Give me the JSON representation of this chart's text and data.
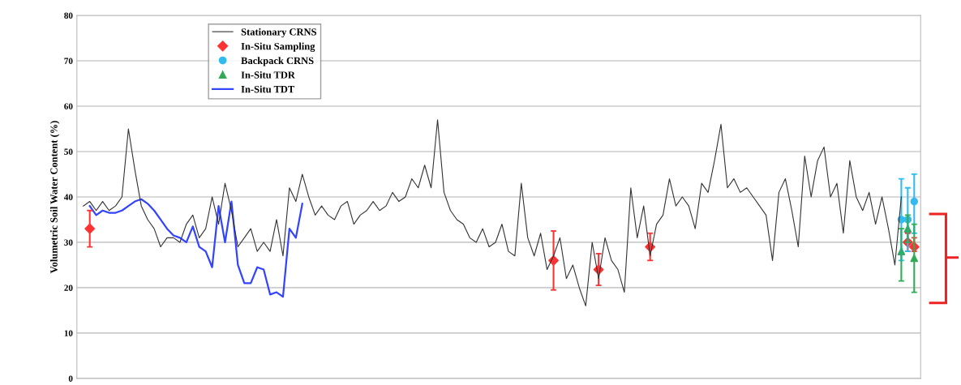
{
  "chart_data": {
    "type": "line",
    "ylabel": "Volumetric Soil Water Content (%)",
    "categories": [
      null,
      null,
      null,
      null,
      null,
      null,
      null,
      null,
      null,
      null,
      null,
      null,
      null,
      null,
      null,
      null,
      null,
      null,
      null,
      null,
      null,
      null,
      null,
      null,
      null,
      null,
      null,
      null,
      null,
      null,
      null,
      null,
      null,
      null,
      null,
      null,
      null,
      null,
      null,
      null,
      null,
      null,
      null,
      null,
      null,
      null,
      null,
      null,
      null,
      null,
      null,
      null,
      null,
      null,
      null,
      null,
      null,
      null,
      null,
      null,
      null,
      null,
      null,
      null,
      null,
      null,
      null,
      null,
      null,
      null,
      null,
      null,
      null,
      null,
      null,
      null,
      null,
      null,
      null,
      null,
      null,
      null,
      null,
      null,
      null,
      null,
      null,
      null,
      null,
      null,
      null,
      null,
      null,
      null,
      null,
      null,
      null,
      null,
      null,
      null,
      null,
      null,
      null,
      null,
      null,
      null,
      null,
      null,
      null,
      null,
      null,
      null,
      null,
      null,
      null,
      null,
      null,
      null,
      null,
      null,
      null,
      null,
      null,
      null,
      null,
      null,
      null,
      null,
      null,
      null
    ],
    "ylim": [
      0,
      80
    ],
    "yticks": [
      0,
      10,
      20,
      30,
      40,
      50,
      60,
      70,
      80
    ],
    "grid": "y",
    "legend": "top left",
    "series": [
      {
        "name": "Stationary CRNS",
        "color": "#333333",
        "marker": "none",
        "values": [
          38,
          39,
          37,
          39,
          37,
          38,
          40,
          55,
          46,
          38,
          35,
          33,
          29,
          31,
          31,
          30,
          34,
          36,
          31,
          33,
          40,
          34,
          43,
          37,
          29,
          31,
          33,
          28,
          30,
          28,
          35,
          27,
          42,
          39,
          45,
          40,
          36,
          38,
          36,
          35,
          38,
          39,
          34,
          36,
          37,
          39,
          37,
          38,
          41,
          39,
          40,
          44,
          42,
          47,
          42,
          57,
          41,
          37,
          35,
          34,
          31,
          30,
          33,
          29,
          30,
          34,
          28,
          27,
          43,
          31,
          27,
          32,
          24,
          27,
          31,
          22,
          25,
          20,
          16,
          30,
          22,
          31,
          26,
          24,
          19,
          42,
          31,
          38,
          27,
          34,
          36,
          44,
          38,
          40,
          38,
          33,
          43,
          41,
          48,
          56,
          42,
          44,
          41,
          42,
          40,
          38,
          36,
          26,
          41,
          44,
          37,
          29,
          49,
          40,
          48,
          51,
          40,
          43,
          32,
          48,
          40,
          37,
          41,
          34,
          40,
          33,
          25,
          40,
          null,
          null
        ]
      },
      {
        "name": "In-Situ Sampling",
        "type": "scatter",
        "color": "#ff3333",
        "marker": "diamond",
        "values": [
          null,
          33,
          null,
          null,
          null,
          null,
          null,
          null,
          null,
          null,
          null,
          null,
          null,
          null,
          null,
          null,
          null,
          null,
          null,
          null,
          null,
          null,
          null,
          null,
          null,
          null,
          null,
          null,
          null,
          null,
          null,
          null,
          null,
          null,
          null,
          null,
          null,
          null,
          null,
          null,
          null,
          null,
          null,
          null,
          null,
          null,
          null,
          null,
          null,
          null,
          null,
          null,
          null,
          null,
          null,
          null,
          null,
          null,
          null,
          null,
          null,
          null,
          null,
          null,
          null,
          null,
          null,
          null,
          null,
          null,
          null,
          null,
          null,
          26,
          null,
          null,
          null,
          null,
          null,
          null,
          24,
          null,
          null,
          null,
          null,
          null,
          null,
          null,
          29,
          null,
          null,
          null,
          null,
          null,
          null,
          null,
          null,
          null,
          null,
          null,
          null,
          null,
          null,
          null,
          null,
          null,
          null,
          null,
          null,
          null,
          null,
          null,
          null,
          null,
          null,
          null,
          null,
          null,
          null,
          null,
          null,
          null,
          null,
          null,
          null,
          null,
          null,
          null,
          30,
          29
        ],
        "errors": [
          null,
          [
            29,
            37
          ],
          null,
          null,
          null,
          null,
          null,
          null,
          null,
          null,
          null,
          null,
          null,
          null,
          null,
          null,
          null,
          null,
          null,
          null,
          null,
          null,
          null,
          null,
          null,
          null,
          null,
          null,
          null,
          null,
          null,
          null,
          null,
          null,
          null,
          null,
          null,
          null,
          null,
          null,
          null,
          null,
          null,
          null,
          null,
          null,
          null,
          null,
          null,
          null,
          null,
          null,
          null,
          null,
          null,
          null,
          null,
          null,
          null,
          null,
          null,
          null,
          null,
          null,
          null,
          null,
          null,
          null,
          null,
          null,
          null,
          null,
          null,
          [
            19.5,
            32.5
          ],
          null,
          null,
          null,
          null,
          null,
          null,
          [
            20.5,
            27.5
          ],
          null,
          null,
          null,
          null,
          null,
          null,
          null,
          [
            26,
            32
          ],
          null,
          null,
          null,
          null,
          null,
          null,
          null,
          null,
          null,
          null,
          null,
          null,
          null,
          null,
          null,
          null,
          null,
          null,
          null,
          null,
          null,
          null,
          null,
          null,
          null,
          null,
          null,
          null,
          null,
          null,
          null,
          null,
          null,
          null,
          null,
          null,
          null,
          null,
          null,
          [
            28,
            32
          ],
          [
            28,
            31
          ]
        ]
      },
      {
        "name": "Backpack CRNS",
        "type": "scatter",
        "color": "#33bbee",
        "marker": "circle",
        "values": [
          null,
          null,
          null,
          null,
          null,
          null,
          null,
          null,
          null,
          null,
          null,
          null,
          null,
          null,
          null,
          null,
          null,
          null,
          null,
          null,
          null,
          null,
          null,
          null,
          null,
          null,
          null,
          null,
          null,
          null,
          null,
          null,
          null,
          null,
          null,
          null,
          null,
          null,
          null,
          null,
          null,
          null,
          null,
          null,
          null,
          null,
          null,
          null,
          null,
          null,
          null,
          null,
          null,
          null,
          null,
          null,
          null,
          null,
          null,
          null,
          null,
          null,
          null,
          null,
          null,
          null,
          null,
          null,
          null,
          null,
          null,
          null,
          null,
          null,
          null,
          null,
          null,
          null,
          null,
          null,
          null,
          null,
          null,
          null,
          null,
          null,
          null,
          null,
          null,
          null,
          null,
          null,
          null,
          null,
          null,
          null,
          null,
          null,
          null,
          null,
          null,
          null,
          null,
          null,
          null,
          null,
          null,
          null,
          null,
          null,
          null,
          null,
          null,
          null,
          null,
          null,
          null,
          null,
          null,
          null,
          null,
          null,
          null,
          null,
          null,
          null,
          null,
          35,
          35,
          39
        ],
        "errors": [
          null,
          null,
          null,
          null,
          null,
          null,
          null,
          null,
          null,
          null,
          null,
          null,
          null,
          null,
          null,
          null,
          null,
          null,
          null,
          null,
          null,
          null,
          null,
          null,
          null,
          null,
          null,
          null,
          null,
          null,
          null,
          null,
          null,
          null,
          null,
          null,
          null,
          null,
          null,
          null,
          null,
          null,
          null,
          null,
          null,
          null,
          null,
          null,
          null,
          null,
          null,
          null,
          null,
          null,
          null,
          null,
          null,
          null,
          null,
          null,
          null,
          null,
          null,
          null,
          null,
          null,
          null,
          null,
          null,
          null,
          null,
          null,
          null,
          null,
          null,
          null,
          null,
          null,
          null,
          null,
          null,
          null,
          null,
          null,
          null,
          null,
          null,
          null,
          null,
          null,
          null,
          null,
          null,
          null,
          null,
          null,
          null,
          null,
          null,
          null,
          null,
          null,
          null,
          null,
          null,
          null,
          null,
          null,
          null,
          null,
          null,
          null,
          null,
          null,
          null,
          null,
          null,
          null,
          null,
          null,
          null,
          null,
          null,
          null,
          null,
          null,
          null,
          [
            26,
            44
          ],
          [
            28,
            42
          ],
          [
            32,
            45
          ]
        ]
      },
      {
        "name": "In-Situ TDR",
        "type": "scatter",
        "color": "#33aa55",
        "marker": "triangle",
        "values": [
          null,
          null,
          null,
          null,
          null,
          null,
          null,
          null,
          null,
          null,
          null,
          null,
          null,
          null,
          null,
          null,
          null,
          null,
          null,
          null,
          null,
          null,
          null,
          null,
          null,
          null,
          null,
          null,
          null,
          null,
          null,
          null,
          null,
          null,
          null,
          null,
          null,
          null,
          null,
          null,
          null,
          null,
          null,
          null,
          null,
          null,
          null,
          null,
          null,
          null,
          null,
          null,
          null,
          null,
          null,
          null,
          null,
          null,
          null,
          null,
          null,
          null,
          null,
          null,
          null,
          null,
          null,
          null,
          null,
          null,
          null,
          null,
          null,
          null,
          null,
          null,
          null,
          null,
          null,
          null,
          null,
          null,
          null,
          null,
          null,
          null,
          null,
          null,
          null,
          null,
          null,
          null,
          null,
          null,
          null,
          null,
          null,
          null,
          null,
          null,
          null,
          null,
          null,
          null,
          null,
          null,
          null,
          null,
          null,
          null,
          null,
          null,
          null,
          null,
          null,
          null,
          null,
          null,
          null,
          null,
          null,
          null,
          null,
          null,
          null,
          null,
          null,
          28,
          33,
          26.5
        ],
        "errors": [
          null,
          null,
          null,
          null,
          null,
          null,
          null,
          null,
          null,
          null,
          null,
          null,
          null,
          null,
          null,
          null,
          null,
          null,
          null,
          null,
          null,
          null,
          null,
          null,
          null,
          null,
          null,
          null,
          null,
          null,
          null,
          null,
          null,
          null,
          null,
          null,
          null,
          null,
          null,
          null,
          null,
          null,
          null,
          null,
          null,
          null,
          null,
          null,
          null,
          null,
          null,
          null,
          null,
          null,
          null,
          null,
          null,
          null,
          null,
          null,
          null,
          null,
          null,
          null,
          null,
          null,
          null,
          null,
          null,
          null,
          null,
          null,
          null,
          null,
          null,
          null,
          null,
          null,
          null,
          null,
          null,
          null,
          null,
          null,
          null,
          null,
          null,
          null,
          null,
          null,
          null,
          null,
          null,
          null,
          null,
          null,
          null,
          null,
          null,
          null,
          null,
          null,
          null,
          null,
          null,
          null,
          null,
          null,
          null,
          null,
          null,
          null,
          null,
          null,
          null,
          null,
          null,
          null,
          null,
          null,
          null,
          null,
          null,
          null,
          null,
          null,
          null,
          [
            21.5,
            33
          ],
          [
            30,
            36
          ],
          [
            19,
            34
          ]
        ]
      },
      {
        "name": "In-Situ TDT",
        "color": "#3344ff",
        "marker": "none",
        "values": [
          null,
          38,
          36,
          37,
          36.5,
          36.5,
          37,
          38,
          39,
          39.5,
          38.5,
          37,
          35,
          33,
          31.5,
          31,
          30,
          33.5,
          29,
          28,
          24.5,
          38,
          30,
          39,
          25,
          21,
          21,
          24.5,
          24,
          18.5,
          19,
          18,
          33,
          31,
          38.5,
          null,
          null,
          null,
          null,
          null,
          null,
          null,
          null,
          null,
          null,
          null,
          null,
          null,
          null,
          null,
          null,
          null,
          null,
          null,
          null,
          null,
          null,
          null,
          null,
          null,
          null,
          null,
          null,
          null,
          null,
          null,
          null,
          null,
          null,
          null,
          null,
          null,
          null,
          null,
          null,
          null,
          null,
          null,
          null,
          null,
          null,
          null,
          null,
          null,
          null,
          null,
          null,
          null,
          null,
          null,
          null,
          null,
          null,
          null,
          null,
          null,
          null,
          null,
          null,
          null,
          null,
          null,
          null,
          null,
          null,
          null,
          null,
          null,
          null,
          null,
          null,
          null,
          null,
          null,
          null,
          null,
          null,
          null,
          null,
          null,
          null,
          null,
          null,
          null,
          null,
          null,
          null,
          null,
          null,
          null
        ]
      }
    ]
  }
}
